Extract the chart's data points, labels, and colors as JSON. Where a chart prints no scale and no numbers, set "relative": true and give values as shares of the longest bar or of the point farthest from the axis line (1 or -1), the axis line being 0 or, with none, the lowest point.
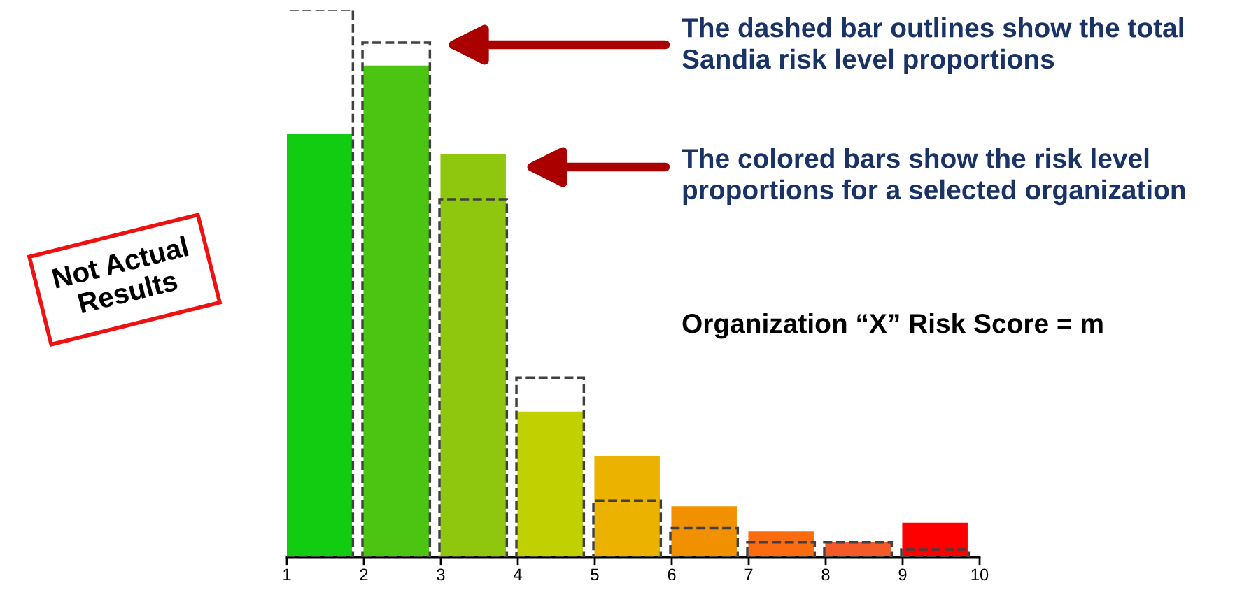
{
  "chart_data": {
    "type": "bar",
    "relative": true,
    "x": [
      1.42,
      2.42,
      3.42,
      4.42,
      5.42,
      6.42,
      7.42,
      8.42,
      9.42
    ],
    "xlim": [
      1,
      10
    ],
    "xticks": [
      1,
      2,
      3,
      4,
      5,
      6,
      7,
      8,
      9,
      10
    ],
    "tick_labels": "x",
    "grid": false,
    "legend": false,
    "series": [
      {
        "colors": [
          "#12cc12",
          "#4cc412",
          "#8fc70e",
          "#c0d000",
          "#ebb300",
          "#f29100",
          "#fb6c10",
          "#f45a28",
          "#ff0000"
        ],
        "values": [
          0.774,
          0.898,
          0.737,
          0.266,
          0.185,
          0.093,
          0.047,
          0.027,
          0.063
        ]
      },
      {
        "color": "#404040",
        "line_style": "dashed",
        "values": [
          1.0,
          0.94,
          0.654,
          0.328,
          0.103,
          0.053,
          0.027,
          0.027,
          0.014
        ]
      }
    ],
    "annotations": [
      "The dashed bar outlines show the total Sandia risk level proportions",
      "The colored bars show the risk level proportions for a selected organization",
      "Organization “X” Risk Score = m",
      "Not Actual Results"
    ]
  }
}
